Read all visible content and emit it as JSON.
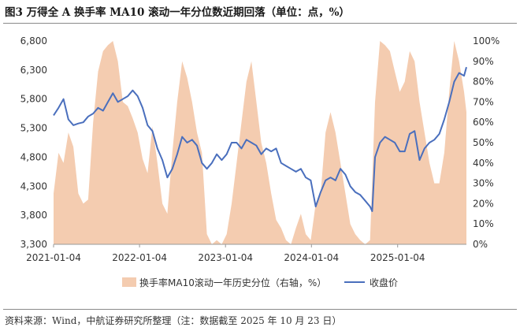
{
  "title": "图3  万得全 A 换手率 MA10 滚动一年分位数近期回落（单位：点，%）",
  "source": "资料来源：Wind，中航证券研究所整理（注：数据截至 2025 年 10 月 23 日）",
  "colors": {
    "area": "#f4ccb0",
    "line": "#4a6fbd"
  },
  "chart_data": {
    "type": "line",
    "title": "万得全 A 换手率 MA10 滚动一年分位数近期回落（单位：点，%）",
    "x_tick_labels": [
      "2021-01-04",
      "2022-01-04",
      "2023-01-04",
      "2024-01-04",
      "2025-01-04"
    ],
    "x_range": [
      "2021-01-04",
      "2025-10-23"
    ],
    "left_axis": {
      "ticks": [
        "6,800",
        "6,300",
        "5,800",
        "5,300",
        "4,800",
        "4,300",
        "3,800",
        "3,300"
      ],
      "ylim": [
        3300,
        6800
      ]
    },
    "right_axis": {
      "ticks": [
        "100%",
        "90%",
        "80%",
        "70%",
        "60%",
        "50%",
        "40%",
        "30%",
        "20%",
        "10%",
        "0%"
      ],
      "ylim": [
        0,
        100
      ]
    },
    "grid": false,
    "legend_position": "bottom",
    "series": [
      {
        "name": "换手率MA10滚动一年历史分位（右轴，%）",
        "type": "area",
        "axis": "right",
        "points": [
          [
            "2021-01-04",
            25
          ],
          [
            "2021-01-25",
            45
          ],
          [
            "2021-02-15",
            40
          ],
          [
            "2021-03-08",
            55
          ],
          [
            "2021-03-29",
            48
          ],
          [
            "2021-04-19",
            25
          ],
          [
            "2021-05-10",
            20
          ],
          [
            "2021-05-31",
            22
          ],
          [
            "2021-06-21",
            60
          ],
          [
            "2021-07-12",
            85
          ],
          [
            "2021-08-02",
            95
          ],
          [
            "2021-08-23",
            98
          ],
          [
            "2021-09-13",
            100
          ],
          [
            "2021-10-04",
            90
          ],
          [
            "2021-10-25",
            70
          ],
          [
            "2021-11-15",
            68
          ],
          [
            "2021-12-06",
            62
          ],
          [
            "2021-12-27",
            55
          ],
          [
            "2022-01-17",
            42
          ],
          [
            "2022-02-07",
            35
          ],
          [
            "2022-02-28",
            58
          ],
          [
            "2022-03-21",
            40
          ],
          [
            "2022-04-11",
            20
          ],
          [
            "2022-05-02",
            15
          ],
          [
            "2022-05-23",
            45
          ],
          [
            "2022-06-13",
            70
          ],
          [
            "2022-07-04",
            90
          ],
          [
            "2022-07-25",
            82
          ],
          [
            "2022-08-15",
            70
          ],
          [
            "2022-09-05",
            55
          ],
          [
            "2022-09-26",
            45
          ],
          [
            "2022-10-17",
            5
          ],
          [
            "2022-11-07",
            0
          ],
          [
            "2022-11-28",
            2
          ],
          [
            "2022-12-19",
            0
          ],
          [
            "2023-01-09",
            5
          ],
          [
            "2023-01-30",
            20
          ],
          [
            "2023-02-20",
            40
          ],
          [
            "2023-03-13",
            60
          ],
          [
            "2023-04-03",
            80
          ],
          [
            "2023-04-24",
            90
          ],
          [
            "2023-05-15",
            70
          ],
          [
            "2023-06-05",
            50
          ],
          [
            "2023-06-26",
            40
          ],
          [
            "2023-07-17",
            25
          ],
          [
            "2023-08-07",
            12
          ],
          [
            "2023-08-28",
            8
          ],
          [
            "2023-09-18",
            2
          ],
          [
            "2023-10-09",
            0
          ],
          [
            "2023-10-30",
            8
          ],
          [
            "2023-11-20",
            15
          ],
          [
            "2023-12-11",
            5
          ],
          [
            "2024-01-01",
            2
          ],
          [
            "2024-01-22",
            20
          ],
          [
            "2024-02-12",
            25
          ],
          [
            "2024-03-04",
            55
          ],
          [
            "2024-03-25",
            65
          ],
          [
            "2024-04-15",
            55
          ],
          [
            "2024-05-06",
            40
          ],
          [
            "2024-05-27",
            25
          ],
          [
            "2024-06-17",
            10
          ],
          [
            "2024-07-08",
            5
          ],
          [
            "2024-07-29",
            2
          ],
          [
            "2024-08-19",
            0
          ],
          [
            "2024-09-09",
            2
          ],
          [
            "2024-09-30",
            70
          ],
          [
            "2024-10-21",
            100
          ],
          [
            "2024-11-11",
            98
          ],
          [
            "2024-12-02",
            95
          ],
          [
            "2024-12-23",
            85
          ],
          [
            "2025-01-13",
            75
          ],
          [
            "2025-02-03",
            80
          ],
          [
            "2025-02-24",
            95
          ],
          [
            "2025-03-17",
            90
          ],
          [
            "2025-04-07",
            70
          ],
          [
            "2025-04-28",
            55
          ],
          [
            "2025-05-19",
            40
          ],
          [
            "2025-06-09",
            30
          ],
          [
            "2025-06-30",
            30
          ],
          [
            "2025-07-21",
            45
          ],
          [
            "2025-08-11",
            75
          ],
          [
            "2025-09-01",
            100
          ],
          [
            "2025-09-22",
            90
          ],
          [
            "2025-10-13",
            75
          ],
          [
            "2025-10-23",
            65
          ]
        ]
      },
      {
        "name": "收盘价",
        "type": "line",
        "axis": "left",
        "points": [
          [
            "2021-01-04",
            5520
          ],
          [
            "2021-01-25",
            5650
          ],
          [
            "2021-02-15",
            5800
          ],
          [
            "2021-03-08",
            5450
          ],
          [
            "2021-03-29",
            5350
          ],
          [
            "2021-04-19",
            5380
          ],
          [
            "2021-05-10",
            5400
          ],
          [
            "2021-05-31",
            5500
          ],
          [
            "2021-06-21",
            5550
          ],
          [
            "2021-07-12",
            5650
          ],
          [
            "2021-08-02",
            5600
          ],
          [
            "2021-08-23",
            5750
          ],
          [
            "2021-09-13",
            5900
          ],
          [
            "2021-10-04",
            5750
          ],
          [
            "2021-10-25",
            5800
          ],
          [
            "2021-11-15",
            5850
          ],
          [
            "2021-12-06",
            5950
          ],
          [
            "2021-12-27",
            5850
          ],
          [
            "2022-01-17",
            5650
          ],
          [
            "2022-02-07",
            5350
          ],
          [
            "2022-02-28",
            5250
          ],
          [
            "2022-03-21",
            4950
          ],
          [
            "2022-04-11",
            4750
          ],
          [
            "2022-05-02",
            4450
          ],
          [
            "2022-05-23",
            4600
          ],
          [
            "2022-06-13",
            4850
          ],
          [
            "2022-07-04",
            5150
          ],
          [
            "2022-07-25",
            5050
          ],
          [
            "2022-08-15",
            5100
          ],
          [
            "2022-09-05",
            5000
          ],
          [
            "2022-09-26",
            4700
          ],
          [
            "2022-10-17",
            4600
          ],
          [
            "2022-11-07",
            4700
          ],
          [
            "2022-11-28",
            4850
          ],
          [
            "2022-12-19",
            4750
          ],
          [
            "2023-01-09",
            4850
          ],
          [
            "2023-01-30",
            5050
          ],
          [
            "2023-02-20",
            5050
          ],
          [
            "2023-03-13",
            4950
          ],
          [
            "2023-04-03",
            5100
          ],
          [
            "2023-04-24",
            5050
          ],
          [
            "2023-05-15",
            5000
          ],
          [
            "2023-06-05",
            4850
          ],
          [
            "2023-06-26",
            4950
          ],
          [
            "2023-07-17",
            4900
          ],
          [
            "2023-08-07",
            4950
          ],
          [
            "2023-08-28",
            4700
          ],
          [
            "2023-09-18",
            4650
          ],
          [
            "2023-10-09",
            4600
          ],
          [
            "2023-10-30",
            4550
          ],
          [
            "2023-11-20",
            4600
          ],
          [
            "2023-12-11",
            4450
          ],
          [
            "2024-01-01",
            4400
          ],
          [
            "2024-01-22",
            3950
          ],
          [
            "2024-02-12",
            4200
          ],
          [
            "2024-03-04",
            4400
          ],
          [
            "2024-03-25",
            4450
          ],
          [
            "2024-04-15",
            4400
          ],
          [
            "2024-05-06",
            4600
          ],
          [
            "2024-05-27",
            4500
          ],
          [
            "2024-06-17",
            4300
          ],
          [
            "2024-07-08",
            4200
          ],
          [
            "2024-07-29",
            4150
          ],
          [
            "2024-08-19",
            4050
          ],
          [
            "2024-09-09",
            3950
          ],
          [
            "2024-09-18",
            3870
          ],
          [
            "2024-09-30",
            4800
          ],
          [
            "2024-10-21",
            5050
          ],
          [
            "2024-11-11",
            5150
          ],
          [
            "2024-12-02",
            5100
          ],
          [
            "2024-12-23",
            5050
          ],
          [
            "2025-01-13",
            4900
          ],
          [
            "2025-02-03",
            4900
          ],
          [
            "2025-02-24",
            5200
          ],
          [
            "2025-03-17",
            5250
          ],
          [
            "2025-04-07",
            4750
          ],
          [
            "2025-04-28",
            4950
          ],
          [
            "2025-05-19",
            5050
          ],
          [
            "2025-06-09",
            5100
          ],
          [
            "2025-06-30",
            5200
          ],
          [
            "2025-07-21",
            5450
          ],
          [
            "2025-08-11",
            5750
          ],
          [
            "2025-09-01",
            6100
          ],
          [
            "2025-09-22",
            6250
          ],
          [
            "2025-10-13",
            6200
          ],
          [
            "2025-10-23",
            6350
          ]
        ]
      }
    ]
  }
}
